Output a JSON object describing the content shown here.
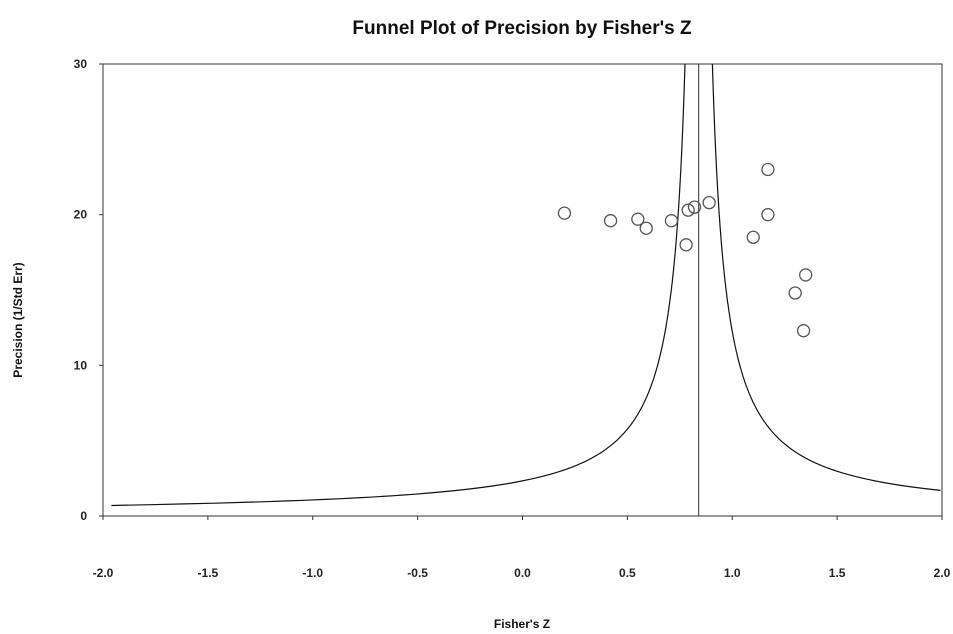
{
  "chart_data": {
    "type": "scatter",
    "title": "Funnel Plot of Precision by Fisher's Z",
    "xlabel": "Fisher's Z",
    "ylabel": "Precision (1/Std Err)",
    "xlim": [
      -2.0,
      2.0
    ],
    "ylim": [
      0,
      30
    ],
    "xticks": [
      "-2.0",
      "-1.5",
      "-1.0",
      "-0.5",
      "0.0",
      "0.5",
      "1.0",
      "1.5",
      "2.0"
    ],
    "yticks": [
      "0",
      "10",
      "20",
      "30"
    ],
    "grid": false,
    "legend": "none",
    "mean_effect": 0.84,
    "series": [
      {
        "x": [
          0.2,
          0.42,
          0.55,
          0.59,
          0.71,
          0.79,
          0.82,
          0.89,
          0.78,
          1.1,
          1.17,
          1.17,
          1.3,
          1.35,
          1.34
        ],
        "y": [
          20.1,
          19.6,
          19.7,
          19.1,
          19.6,
          20.3,
          20.5,
          20.8,
          18.0,
          18.5,
          20.0,
          23.0,
          14.8,
          16.0,
          12.3
        ]
      }
    ],
    "colors": {
      "marker": "#555555",
      "line": "#111111",
      "frame": "#333333"
    }
  }
}
